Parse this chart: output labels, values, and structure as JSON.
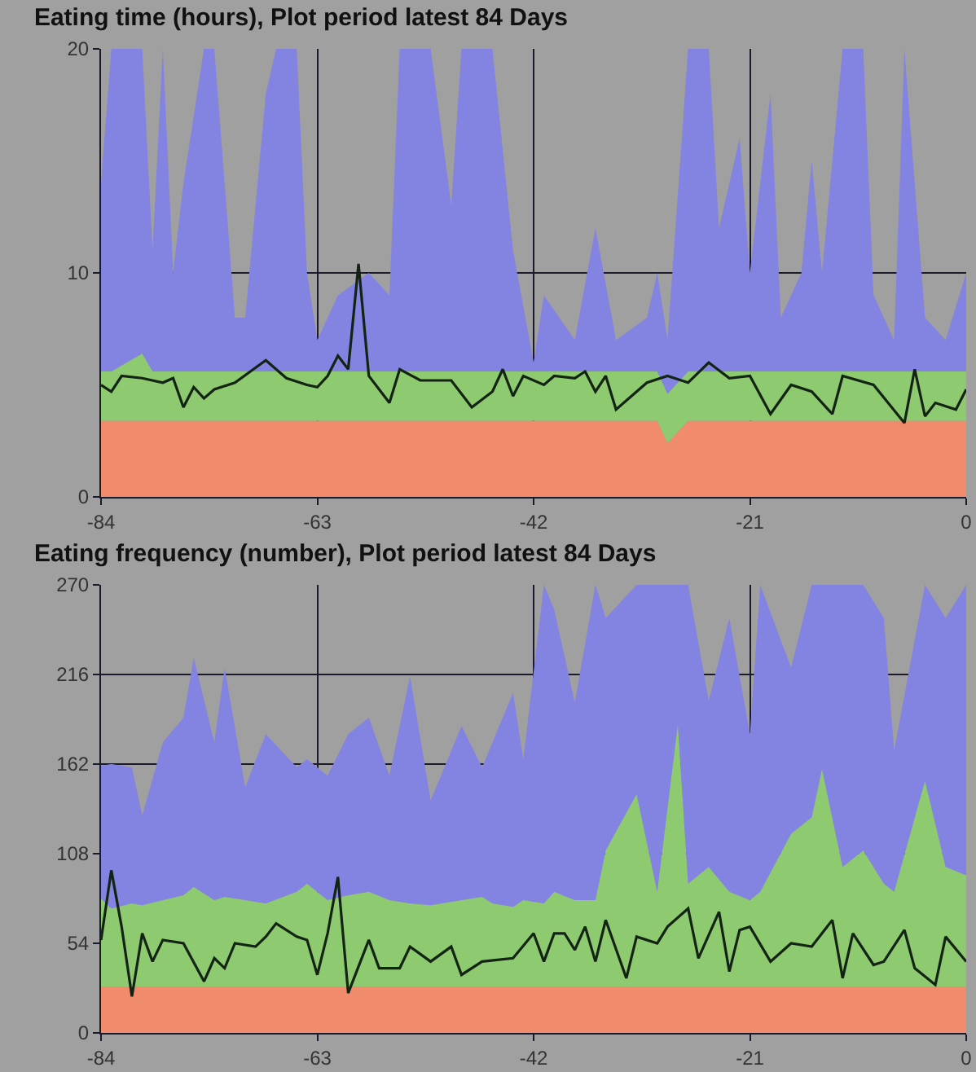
{
  "chart_data": [
    {
      "type": "area",
      "title": "Eating time (hours), Plot period latest 84 Days",
      "stacked": true,
      "grid": true,
      "marker": "none",
      "line_style": "solid",
      "x": [
        -84,
        -83,
        -80,
        -79,
        -78,
        -77,
        -76,
        -74,
        -73,
        -71,
        -70,
        -68,
        -67,
        -65,
        -64,
        -63,
        -61,
        -58,
        -56,
        -55,
        -52,
        -50,
        -49,
        -46,
        -44,
        -42,
        -41,
        -38,
        -36,
        -34,
        -31,
        -30,
        -29,
        -27,
        -25,
        -24,
        -22,
        -21,
        -19,
        -18,
        -16,
        -15,
        -14,
        -12,
        -10,
        -9,
        -7,
        -6,
        -4,
        -2,
        0
      ],
      "xlim": [
        -84,
        0
      ],
      "xticks": [
        -84,
        -63,
        -42,
        -21,
        0
      ],
      "ylim": [
        0,
        20
      ],
      "yticks": [
        0,
        10,
        20
      ],
      "series": [
        {
          "color": "#f08c6c",
          "values": [
            3.4,
            3.4,
            3.4,
            3.4,
            3.4,
            3.4,
            3.4,
            3.4,
            3.4,
            3.4,
            3.4,
            3.4,
            3.4,
            3.4,
            3.4,
            3.4,
            3.4,
            3.4,
            3.4,
            3.4,
            3.4,
            3.4,
            3.4,
            3.4,
            3.4,
            3.4,
            3.4,
            3.4,
            3.4,
            3.4,
            3.4,
            3.4,
            2.4,
            3.4,
            3.4,
            3.4,
            3.4,
            3.4,
            3.4,
            3.4,
            3.4,
            3.4,
            3.4,
            3.4,
            3.4,
            3.4,
            3.4,
            3.4,
            3.4,
            3.4,
            3.4
          ]
        },
        {
          "color": "#8dca70",
          "values": [
            2.2,
            2.2,
            3.0,
            2.2,
            2.2,
            2.2,
            2.2,
            2.2,
            2.2,
            2.2,
            2.2,
            2.2,
            2.2,
            2.2,
            2.2,
            2.2,
            2.2,
            2.2,
            2.2,
            2.2,
            2.2,
            2.2,
            2.2,
            2.2,
            2.2,
            2.2,
            2.2,
            2.2,
            2.2,
            2.2,
            2.2,
            2.2,
            2.2,
            2.2,
            2.2,
            2.2,
            2.2,
            2.2,
            2.2,
            2.2,
            2.2,
            2.2,
            2.2,
            2.2,
            2.2,
            2.2,
            2.2,
            2.2,
            2.2,
            2.2,
            2.2
          ]
        },
        {
          "color": "#8383e2",
          "values": [
            8.4,
            14.4,
            13.6,
            5.4,
            14.4,
            4.4,
            8.4,
            14.4,
            14.4,
            2.4,
            2.4,
            12.4,
            14.4,
            14.4,
            4.4,
            1.4,
            3.4,
            4.4,
            3.4,
            14.4,
            14.4,
            7.4,
            14.4,
            14.4,
            5.4,
            0.4,
            3.4,
            1.4,
            6.4,
            1.4,
            2.4,
            4.4,
            2.4,
            14.4,
            14.4,
            6.4,
            10.4,
            4.4,
            12.4,
            2.4,
            4.4,
            9.4,
            4.4,
            14.4,
            14.4,
            3.4,
            1.4,
            14.4,
            2.4,
            1.4,
            4.4
          ]
        },
        {
          "type": "line",
          "color": "#142414",
          "x": [
            -84,
            -83,
            -82,
            -80,
            -78,
            -77,
            -76,
            -75,
            -74,
            -73,
            -71,
            -68,
            -66,
            -64,
            -63,
            -62,
            -61,
            -60,
            -59,
            -58,
            -57,
            -56,
            -55,
            -53,
            -50,
            -48,
            -46,
            -45,
            -44,
            -43,
            -41,
            -40,
            -38,
            -37,
            -36,
            -35,
            -34,
            -31,
            -29,
            -27,
            -25,
            -23,
            -21,
            -19,
            -17,
            -15,
            -13,
            -12,
            -9,
            -6,
            -5,
            -4,
            -3,
            -1,
            0
          ],
          "values": [
            5.0,
            4.7,
            5.4,
            5.3,
            5.1,
            5.3,
            4.0,
            4.9,
            4.4,
            4.8,
            5.1,
            6.1,
            5.3,
            5.0,
            4.9,
            5.4,
            6.3,
            5.7,
            10.4,
            5.4,
            4.8,
            4.2,
            5.7,
            5.2,
            5.2,
            4.0,
            4.7,
            5.7,
            4.5,
            5.4,
            5.0,
            5.4,
            5.3,
            5.6,
            4.7,
            5.4,
            3.9,
            5.1,
            5.4,
            5.1,
            6.0,
            5.3,
            5.4,
            3.7,
            5.0,
            4.7,
            3.7,
            5.4,
            5.0,
            3.3,
            5.7,
            3.6,
            4.2,
            3.9,
            4.8
          ]
        }
      ]
    },
    {
      "type": "area",
      "title": "Eating frequency (number), Plot period latest 84 Days",
      "stacked": true,
      "grid": true,
      "marker": "none",
      "line_style": "solid",
      "x": [
        -84,
        -83,
        -81,
        -80,
        -78,
        -76,
        -75,
        -73,
        -72,
        -70,
        -68,
        -65,
        -64,
        -62,
        -60,
        -58,
        -56,
        -54,
        -52,
        -49,
        -47,
        -46,
        -44,
        -43,
        -41,
        -40,
        -38,
        -36,
        -35,
        -32,
        -30,
        -28,
        -27,
        -25,
        -23,
        -21,
        -20,
        -17,
        -15,
        -14,
        -12,
        -10,
        -8,
        -7,
        -4,
        -2,
        0
      ],
      "xlim": [
        -84,
        0
      ],
      "xticks": [
        -84,
        -63,
        -42,
        -21,
        0
      ],
      "ylim": [
        0,
        270
      ],
      "yticks": [
        0,
        54,
        108,
        162,
        216,
        270
      ],
      "series": [
        {
          "color": "#f08c6c",
          "values": [
            28,
            28,
            28,
            28,
            28,
            28,
            28,
            28,
            28,
            28,
            28,
            28,
            28,
            28,
            28,
            28,
            28,
            28,
            28,
            28,
            28,
            28,
            28,
            28,
            28,
            28,
            28,
            28,
            28,
            28,
            28,
            28,
            28,
            28,
            28,
            28,
            28,
            28,
            28,
            28,
            28,
            28,
            28,
            28,
            28,
            28,
            28
          ]
        },
        {
          "color": "#8dca70",
          "values": [
            53,
            47,
            50,
            49,
            52,
            55,
            60,
            52,
            54,
            52,
            50,
            57,
            62,
            52,
            55,
            57,
            52,
            50,
            49,
            52,
            54,
            50,
            48,
            52,
            50,
            57,
            52,
            52,
            82,
            116,
            57,
            158,
            62,
            72,
            57,
            52,
            57,
            92,
            102,
            131,
            72,
            82,
            62,
            57,
            124,
            72,
            67
          ]
        },
        {
          "color": "#8383e2",
          "values": [
            80,
            87,
            82,
            54,
            95,
            107,
            138,
            95,
            138,
            68,
            102,
            75,
            75,
            75,
            97,
            105,
            75,
            137,
            63,
            105,
            78,
            97,
            129,
            85,
            192,
            170,
            119,
            190,
            140,
            126,
            185,
            84,
            180,
            100,
            165,
            100,
            185,
            100,
            140,
            111,
            170,
            160,
            160,
            85,
            118,
            150,
            175
          ]
        },
        {
          "type": "line",
          "color": "#142414",
          "x": [
            -84,
            -83,
            -82,
            -81,
            -80,
            -79,
            -78,
            -76,
            -74,
            -73,
            -72,
            -71,
            -69,
            -68,
            -67,
            -65,
            -64,
            -63,
            -62,
            -61,
            -60,
            -58,
            -57,
            -55,
            -54,
            -52,
            -50,
            -49,
            -47,
            -44,
            -42,
            -41,
            -40,
            -39,
            -38,
            -37,
            -36,
            -35,
            -33,
            -32,
            -30,
            -29,
            -27,
            -26,
            -24,
            -23,
            -22,
            -21,
            -19,
            -17,
            -15,
            -13,
            -12,
            -11,
            -9,
            -8,
            -6,
            -5,
            -3,
            -2,
            0
          ],
          "values": [
            56,
            98,
            64,
            22,
            60,
            43,
            56,
            54,
            31,
            45,
            39,
            54,
            52,
            58,
            66,
            58,
            56,
            35,
            60,
            94,
            24,
            56,
            39,
            39,
            52,
            43,
            52,
            35,
            43,
            45,
            60,
            43,
            60,
            60,
            50,
            64,
            43,
            68,
            33,
            58,
            54,
            64,
            75,
            45,
            73,
            37,
            62,
            64,
            43,
            54,
            52,
            68,
            33,
            60,
            41,
            43,
            62,
            39,
            29,
            58,
            43
          ]
        }
      ]
    }
  ]
}
